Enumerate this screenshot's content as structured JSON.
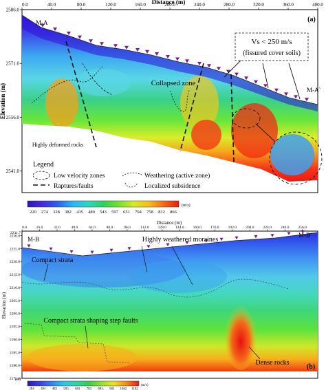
{
  "chart_data": [
    {
      "panel": "(a)",
      "type": "heatmap",
      "xlabel": "Distance (m)",
      "ylabel": "Elevation (m)",
      "x_ticks": [
        "0.0",
        "40.0",
        "80.0",
        "120.0",
        "160.0",
        "200.0",
        "240.0",
        "280.0",
        "320.0",
        "360.0",
        "400.0"
      ],
      "y_ticks": [
        "2586.0",
        "2571.0",
        "2556.0",
        "2541.0"
      ],
      "xlim": [
        0,
        400
      ],
      "ylim": [
        2535,
        2586
      ],
      "profile_start": "M-A",
      "profile_end": "M-A`",
      "annotations": {
        "vs": "Vs < 250 m/s",
        "fissured": "(fissured cover soils)",
        "collapsed": "Collapsed zone",
        "deformed": "Highly deformed rocks"
      },
      "legend_title": "Legend",
      "legend": {
        "low_velocity": "Low velocity zones",
        "weathering": "Weathering (active zone)",
        "ruptures": "Raptures/faults",
        "subsidence": "Localized subsidence"
      },
      "colorbar_values": [
        "220",
        "274",
        "328",
        "382",
        "435",
        "489",
        "543",
        "597",
        "651",
        "704",
        "758",
        "812",
        "866"
      ],
      "colorbar_unit": "(m/s)"
    },
    {
      "panel": "(b)",
      "type": "heatmap",
      "xlabel": "Distance (m)",
      "ylabel": "Elevation (m)",
      "x_ticks": [
        "0.0",
        "16.0",
        "32.0",
        "48.0",
        "64.0",
        "80.0",
        "96.0",
        "112.0",
        "128.0",
        "144.0",
        "160.0",
        "176.0",
        "192.0",
        "208.0",
        "224.0",
        "240.0",
        "256.0"
      ],
      "y_ticks": [
        "2230.0",
        "2225.0",
        "2220.0",
        "2215.0",
        "2210.0",
        "2205.0",
        "2200.0",
        "2195.0",
        "2190.0",
        "2185.0",
        "2180.0",
        "2175.0"
      ],
      "y_top_label": "2231.7",
      "y_unit_label": "(m)",
      "xlim": [
        0,
        270
      ],
      "ylim": [
        2175,
        2231.7
      ],
      "profile_start": "M-B",
      "profile_end": "M-B`",
      "annotations": {
        "compact": "Compact strata",
        "moraines": "Highly weathered moraines",
        "stepfaults": "Compact strata shaping step faults",
        "dense": "Dense rocks"
      },
      "colorbar_values": [
        "284",
        "384",
        "483",
        "583",
        "683",
        "783",
        "883",
        "983",
        "1082",
        "1182"
      ],
      "colorbar_unit": "(m/s)"
    }
  ]
}
